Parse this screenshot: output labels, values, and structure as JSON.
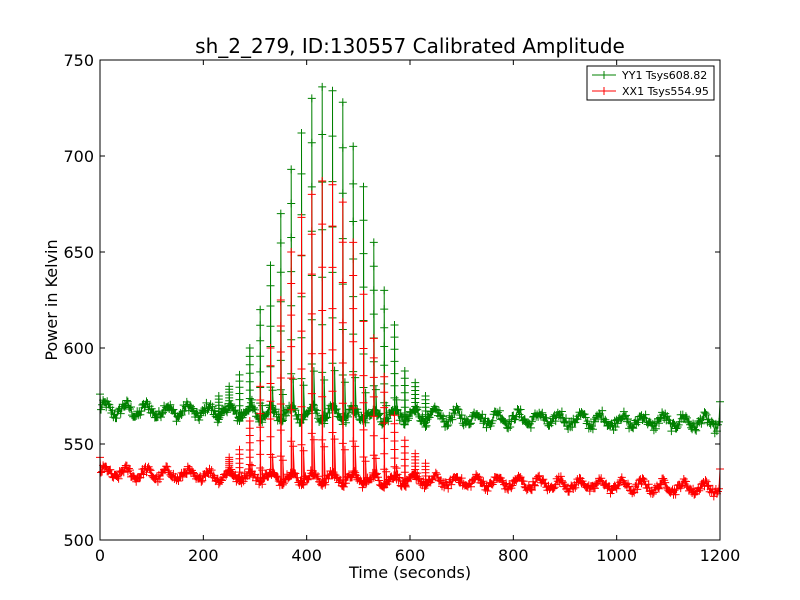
{
  "chart_data": {
    "type": "line",
    "title": "sh_2_279, ID:130557 Calibrated Amplitude",
    "xlabel": "Time (seconds)",
    "ylabel": "Power in Kelvin",
    "xlim": [
      0,
      1200
    ],
    "ylim": [
      500,
      750
    ],
    "xticks": [
      0,
      200,
      400,
      600,
      800,
      1000,
      1200
    ],
    "yticks": [
      500,
      550,
      600,
      650,
      700,
      750
    ],
    "grid": false,
    "legend_position": "top-right",
    "marker": "+",
    "series": [
      {
        "name": "YY1 Tsys608.82",
        "color": "#008000",
        "baseline_start": 568,
        "baseline_end": 561,
        "ripple": 3,
        "noise": 2.5,
        "ends": [
          576,
          572
        ],
        "peak_x": [
          230,
          250,
          270,
          290,
          310,
          330,
          350,
          370,
          390,
          410,
          430,
          450,
          470,
          490,
          510,
          530,
          550,
          570,
          590,
          610,
          630
        ],
        "peak_y": [
          575,
          580,
          586,
          600,
          620,
          643,
          670,
          693,
          712,
          730,
          736,
          734,
          728,
          705,
          684,
          655,
          630,
          612,
          588,
          582,
          575
        ]
      },
      {
        "name": "XX1 Tsys554.95",
        "color": "#ff0000",
        "baseline_start": 535,
        "baseline_end": 527,
        "ripple": 2.5,
        "noise": 2,
        "ends": [
          543,
          537
        ],
        "peak_x": [
          250,
          270,
          290,
          310,
          330,
          350,
          370,
          390,
          410,
          430,
          450,
          470,
          490,
          510,
          530,
          550,
          570,
          590,
          610,
          630
        ],
        "peak_y": [
          543,
          547,
          562,
          580,
          600,
          625,
          650,
          668,
          680,
          687,
          685,
          676,
          655,
          628,
          605,
          585,
          565,
          552,
          545,
          540
        ]
      }
    ]
  }
}
